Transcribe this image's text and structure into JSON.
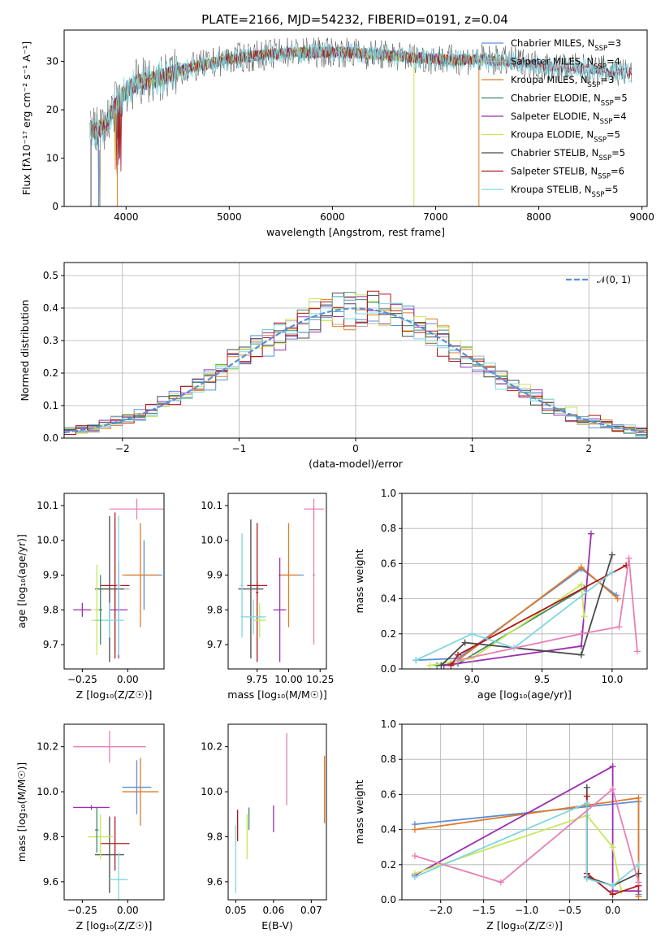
{
  "figure": {
    "title": "PLATE=2166, MJD=54232, FIBERID=0191, z=0.04"
  },
  "colors": {
    "chabrier_miles": "#5a8fd6",
    "salpeter_miles": "#b0b0b0",
    "kroupa_miles": "#e07b26",
    "chabrier_elodie": "#3e8a6e",
    "salpeter_elodie": "#9b2fb0",
    "kroupa_elodie": "#c4e85c",
    "chabrier_stelib": "#4a4a4a",
    "salpeter_stelib": "#b01818",
    "kroupa_stelib": "#7fd6e0",
    "pink": "#e77fb4",
    "normal_curve": "#5a8fd6"
  },
  "legend_spectrum": [
    {
      "label": "Chabrier MILES, N",
      "sub": "SSP",
      "suffix": "=3",
      "color": "#5a8fd6"
    },
    {
      "label": "Salpeter MILES, N",
      "sub": "SSP",
      "suffix": "=4",
      "color": "#b0b0b0"
    },
    {
      "label": "Kroupa MILES, N",
      "sub": "SSP",
      "suffix": "=3",
      "color": "#e07b26"
    },
    {
      "label": "Chabrier ELODIE, N",
      "sub": "SSP",
      "suffix": "=5",
      "color": "#3e8a6e"
    },
    {
      "label": "Salpeter ELODIE, N",
      "sub": "SSP",
      "suffix": "=4",
      "color": "#9b2fb0"
    },
    {
      "label": "Kroupa ELODIE, N",
      "sub": "SSP",
      "suffix": "=5",
      "color": "#c4e85c"
    },
    {
      "label": "Chabrier STELIB, N",
      "sub": "SSP",
      "suffix": "=5",
      "color": "#4a4a4a"
    },
    {
      "label": "Salpeter STELIB, N",
      "sub": "SSP",
      "suffix": "=6",
      "color": "#b01818"
    },
    {
      "label": "Kroupa STELIB, N",
      "sub": "SSP",
      "suffix": "=5",
      "color": "#7fd6e0"
    }
  ],
  "legend_hist": {
    "label": "𝒩(0, 1)"
  },
  "chart_data": [
    {
      "type": "line",
      "title": "PLATE=2166, MJD=54232, FIBERID=0191, z=0.04",
      "xlabel": "wavelength [Angstrom, rest frame]",
      "ylabel": "Flux [fλ10⁻¹⁷ erg cm⁻² s⁻¹ A⁻¹]",
      "xlim": [
        3400,
        9050
      ],
      "ylim": [
        0,
        36.5
      ],
      "xticks": [
        "4000",
        "5000",
        "6000",
        "7000",
        "8000",
        "9000"
      ],
      "yticks": [
        "0",
        "10",
        "20",
        "30"
      ],
      "data_envelope": {
        "x": [
          3650,
          3700,
          3800,
          3900,
          4000,
          4100,
          4200,
          4300,
          4400,
          4500,
          4600,
          4800,
          5000,
          5200,
          5400,
          5600,
          5800,
          6000,
          6200,
          6400,
          6600,
          6800,
          7000,
          7200,
          7400,
          7600,
          7800,
          8000,
          8200,
          8400,
          8600,
          8800,
          8900
        ],
        "y": [
          16,
          15.5,
          17,
          21,
          24,
          25.5,
          26,
          26.5,
          27,
          28,
          28.5,
          29.5,
          30.5,
          31,
          31.5,
          32,
          31.8,
          32,
          31.8,
          31.5,
          31.2,
          30.8,
          30.5,
          30.3,
          30.5,
          30.2,
          29.8,
          29.2,
          28.8,
          28.5,
          28.2,
          27.8,
          27.6
        ]
      }
    },
    {
      "type": "bar",
      "xlabel": "(data-model)/error",
      "ylabel": "Normed distribution",
      "xlim": [
        -2.5,
        2.5
      ],
      "ylim": [
        0,
        0.54
      ],
      "xticks": [
        "−2",
        "−1",
        "0",
        "1",
        "2"
      ],
      "yticks": [
        "0.0",
        "0.1",
        "0.2",
        "0.3",
        "0.4",
        "0.5"
      ],
      "bin_width": 0.1,
      "bin_start": -2.5,
      "series": [
        {
          "name": "𝒩(0, 1)",
          "type": "normal",
          "mean": 0,
          "sigma": 1
        }
      ]
    },
    {
      "type": "scatter",
      "xlabel": "Z [log₁₀(Z/Z☉)]",
      "ylabel": "age  [log₁₀(age/yr)]",
      "xlim": [
        -0.35,
        0.2
      ],
      "ylim": [
        9.63,
        10.135
      ],
      "xticks": [
        "−0.25",
        "0.00"
      ],
      "yticks": [
        "9.7",
        "9.8",
        "9.9",
        "10.0",
        "10.1"
      ],
      "points": [
        {
          "x": 0.09,
          "y": 9.9,
          "xerr": 0.1,
          "yerr": 0.1,
          "color": "#5a8fd6"
        },
        {
          "x": 0.05,
          "y": 10.09,
          "xerr": 0.15,
          "yerr": 0.03,
          "color": "#e77fb4"
        },
        {
          "x": -0.07,
          "y": 9.86,
          "xerr": 0.08,
          "yerr": 0.18,
          "color": "#b0b0b0"
        },
        {
          "x": 0.07,
          "y": 9.9,
          "xerr": 0.1,
          "yerr": 0.15,
          "color": "#e07b26"
        },
        {
          "x": -0.1,
          "y": 9.86,
          "xerr": 0.08,
          "yerr": 0.21,
          "color": "#4a4a4a"
        },
        {
          "x": -0.07,
          "y": 9.87,
          "xerr": 0.08,
          "yerr": 0.21,
          "color": "#b01818"
        },
        {
          "x": -0.05,
          "y": 9.8,
          "xerr": 0.05,
          "yerr": 0.14,
          "color": "#9b2fb0"
        },
        {
          "x": -0.25,
          "y": 9.8,
          "xerr": 0.05,
          "yerr": 0.02,
          "color": "#9b2fb0"
        },
        {
          "x": -0.17,
          "y": 9.8,
          "xerr": 0.02,
          "yerr": 0.13,
          "color": "#c4e85c"
        },
        {
          "x": -0.15,
          "y": 9.77,
          "xerr": 0.05,
          "yerr": 0.05,
          "color": "#c4e85c"
        },
        {
          "x": -0.1,
          "y": 9.77,
          "xerr": 0.08,
          "yerr": 0.05,
          "color": "#7fd6e0"
        },
        {
          "x": -0.05,
          "y": 9.87,
          "xerr": 0.01,
          "yerr": 0.2,
          "color": "#7fd6e0"
        },
        {
          "x": -0.15,
          "y": 9.8,
          "xerr": 0.01,
          "yerr": 0.1,
          "color": "#3e8a6e"
        }
      ]
    },
    {
      "type": "scatter",
      "xlabel": "mass [log₁₀(M/M☉)]",
      "xlim": [
        9.52,
        10.3
      ],
      "ylim": [
        9.63,
        10.135
      ],
      "xticks": [
        "9.75",
        "10.00",
        "10.25"
      ],
      "yticks": [
        "9.7",
        "9.8",
        "9.9",
        "10.0",
        "10.1"
      ],
      "points": [
        {
          "x": 10.02,
          "y": 9.9,
          "xerr": 0.1,
          "yerr": 0.0,
          "color": "#5a8fd6"
        },
        {
          "x": 10.2,
          "y": 10.09,
          "xerr": 0.08,
          "yerr": 0.03,
          "color": "#e77fb4"
        },
        {
          "x": 10.2,
          "y": 9.9,
          "xerr": 0.01,
          "yerr": 0.2,
          "color": "#e77fb4"
        },
        {
          "x": 9.75,
          "y": 9.85,
          "xerr": 0.01,
          "yerr": 0.2,
          "color": "#b01818"
        },
        {
          "x": 9.75,
          "y": 9.87,
          "xerr": 0.08,
          "yerr": 0.01,
          "color": "#b01818"
        },
        {
          "x": 9.7,
          "y": 9.86,
          "xerr": 0.1,
          "yerr": 0.2,
          "color": "#4a4a4a"
        },
        {
          "x": 10.0,
          "y": 9.9,
          "xerr": 0.08,
          "yerr": 0.15,
          "color": "#e07b26"
        },
        {
          "x": 9.93,
          "y": 9.8,
          "xerr": 0.05,
          "yerr": 0.15,
          "color": "#9b2fb0"
        },
        {
          "x": 9.77,
          "y": 9.77,
          "xerr": 0.05,
          "yerr": 0.05,
          "color": "#c4e85c"
        },
        {
          "x": 9.72,
          "y": 9.78,
          "xerr": 0.1,
          "yerr": 0.05,
          "color": "#7fd6e0"
        },
        {
          "x": 9.63,
          "y": 9.87,
          "xerr": 0.01,
          "yerr": 0.15,
          "color": "#7fd6e0"
        }
      ]
    },
    {
      "type": "line",
      "xlabel": "age  [log₁₀(age/yr)]",
      "ylabel": "mass weight",
      "xlim": [
        8.5,
        10.25
      ],
      "ylim": [
        0,
        1.0
      ],
      "xticks": [
        "9.0",
        "9.5",
        "10.0"
      ],
      "yticks": [
        "0.0",
        "0.2",
        "0.4",
        "0.6",
        "0.8",
        "1.0"
      ],
      "series": [
        {
          "color": "#5a8fd6",
          "x": [
            8.6,
            8.9,
            9.78,
            10.03
          ],
          "y": [
            0.05,
            0.06,
            0.57,
            0.42
          ]
        },
        {
          "color": "#e07b26",
          "x": [
            8.85,
            8.9,
            9.78,
            10.04
          ],
          "y": [
            0.03,
            0.05,
            0.58,
            0.4
          ]
        },
        {
          "color": "#3e8a6e",
          "x": [
            8.75,
            8.9,
            9.8
          ],
          "y": [
            0.02,
            0.03,
            0.46
          ]
        },
        {
          "color": "#9b2fb0",
          "x": [
            8.8,
            9.78,
            9.85
          ],
          "y": [
            0.02,
            0.13,
            0.77
          ]
        },
        {
          "color": "#c4e85c",
          "x": [
            8.7,
            9.0,
            9.78,
            9.8
          ],
          "y": [
            0.02,
            0.06,
            0.48,
            0.3
          ]
        },
        {
          "color": "#4a4a4a",
          "x": [
            8.78,
            8.95,
            9.78,
            10.0
          ],
          "y": [
            0.02,
            0.15,
            0.08,
            0.65
          ]
        },
        {
          "color": "#b01818",
          "x": [
            8.85,
            8.9,
            10.1
          ],
          "y": [
            0.02,
            0.08,
            0.59
          ]
        },
        {
          "color": "#7fd6e0",
          "x": [
            8.6,
            9.0,
            9.3,
            10.0
          ],
          "y": [
            0.05,
            0.2,
            0.12,
            0.55
          ]
        },
        {
          "color": "#e77fb4",
          "x": [
            8.9,
            9.78,
            10.05,
            10.12,
            10.18
          ],
          "y": [
            0.05,
            0.2,
            0.24,
            0.63,
            0.1
          ]
        }
      ]
    },
    {
      "type": "scatter",
      "xlabel": "Z [log₁₀(Z/Z☉)]",
      "ylabel": "mass [log₁₀(M/M☉)]",
      "xlim": [
        -0.35,
        0.2
      ],
      "ylim": [
        9.52,
        10.3
      ],
      "xticks": [
        "−0.25",
        "0.00"
      ],
      "yticks": [
        "9.6",
        "9.8",
        "10.0",
        "10.2"
      ],
      "points": [
        {
          "x": 0.05,
          "y": 10.02,
          "xerr": 0.08,
          "yerr": 0.12,
          "color": "#5a8fd6"
        },
        {
          "x": 0.07,
          "y": 10.0,
          "xerr": 0.1,
          "yerr": 0.15,
          "color": "#e07b26"
        },
        {
          "x": -0.1,
          "y": 10.2,
          "xerr": 0.2,
          "yerr": 0.07,
          "color": "#e77fb4"
        },
        {
          "x": -0.2,
          "y": 9.93,
          "xerr": 0.1,
          "yerr": 0.01,
          "color": "#9b2fb0"
        },
        {
          "x": -0.07,
          "y": 9.77,
          "xerr": 0.08,
          "yerr": 0.12,
          "color": "#b01818"
        },
        {
          "x": -0.1,
          "y": 9.72,
          "xerr": 0.08,
          "yerr": 0.17,
          "color": "#4a4a4a"
        },
        {
          "x": -0.15,
          "y": 9.8,
          "xerr": 0.07,
          "yerr": 0.1,
          "color": "#c4e85c"
        },
        {
          "x": -0.05,
          "y": 9.61,
          "xerr": 0.05,
          "yerr": 0.12,
          "color": "#7fd6e0"
        },
        {
          "x": -0.17,
          "y": 9.83,
          "xerr": 0.01,
          "yerr": 0.1,
          "color": "#3e8a6e"
        }
      ]
    },
    {
      "type": "scatter",
      "xlabel": "E(B-V)",
      "xlim": [
        0.048,
        0.074
      ],
      "ylim": [
        9.52,
        10.3
      ],
      "xticks": [
        "0.05",
        "0.06",
        "0.07"
      ],
      "yticks": [
        "9.6",
        "9.8",
        "10.0",
        "10.2"
      ],
      "points": [
        {
          "x": 0.05,
          "y": 9.7,
          "xerr": 0,
          "yerr": 0.15,
          "color": "#7fd6e0"
        },
        {
          "x": 0.0505,
          "y": 9.85,
          "xerr": 0,
          "yerr": 0.07,
          "color": "#b01818"
        },
        {
          "x": 0.053,
          "y": 9.8,
          "xerr": 0,
          "yerr": 0.1,
          "color": "#c4e85c"
        },
        {
          "x": 0.0535,
          "y": 9.88,
          "xerr": 0,
          "yerr": 0.05,
          "color": "#3e8a6e"
        },
        {
          "x": 0.06,
          "y": 9.88,
          "xerr": 0,
          "yerr": 0.06,
          "color": "#9b2fb0"
        },
        {
          "x": 0.0635,
          "y": 10.1,
          "xerr": 0,
          "yerr": 0.16,
          "color": "#e77fb4"
        },
        {
          "x": 0.0735,
          "y": 10.01,
          "xerr": 0,
          "yerr": 0.15,
          "color": "#e07b26"
        }
      ]
    },
    {
      "type": "line",
      "xlabel": "Z [log₁₀(Z/Z☉)]",
      "ylabel": "mass weight",
      "xlim": [
        -2.45,
        0.4
      ],
      "ylim": [
        0,
        1.0
      ],
      "xticks": [
        "−2.0",
        "−1.5",
        "−1.0",
        "−0.5",
        "0.0"
      ],
      "yticks": [
        "0.0",
        "0.2",
        "0.4",
        "0.6",
        "0.8",
        "1.0"
      ],
      "series": [
        {
          "color": "#5a8fd6",
          "x": [
            -2.3,
            0.3,
            0.3
          ],
          "y": [
            0.43,
            0.56,
            0.03
          ]
        },
        {
          "color": "#e07b26",
          "x": [
            -2.3,
            0.3,
            0.3
          ],
          "y": [
            0.4,
            0.58,
            0.02
          ]
        },
        {
          "color": "#9b2fb0",
          "x": [
            -2.3,
            0.0,
            0.0,
            0.3
          ],
          "y": [
            0.14,
            0.76,
            0.05,
            0.05
          ]
        },
        {
          "color": "#c4e85c",
          "x": [
            -2.3,
            -0.3,
            0.0,
            0.1
          ],
          "y": [
            0.15,
            0.48,
            0.3,
            0.05
          ]
        },
        {
          "color": "#4a4a4a",
          "x": [
            -0.3,
            -0.3,
            0.0,
            0.3
          ],
          "y": [
            0.64,
            0.13,
            0.08,
            0.15
          ]
        },
        {
          "color": "#b01818",
          "x": [
            -0.3,
            -0.3,
            0.0,
            0.3
          ],
          "y": [
            0.59,
            0.15,
            0.03,
            0.08
          ]
        },
        {
          "color": "#7fd6e0",
          "x": [
            -2.3,
            -0.3,
            -0.3,
            0.0,
            0.3
          ],
          "y": [
            0.13,
            0.55,
            0.12,
            0.08,
            0.2
          ]
        },
        {
          "color": "#e77fb4",
          "x": [
            -2.3,
            -1.3,
            0.0,
            0.3
          ],
          "y": [
            0.25,
            0.1,
            0.63,
            0.1
          ]
        }
      ]
    }
  ]
}
